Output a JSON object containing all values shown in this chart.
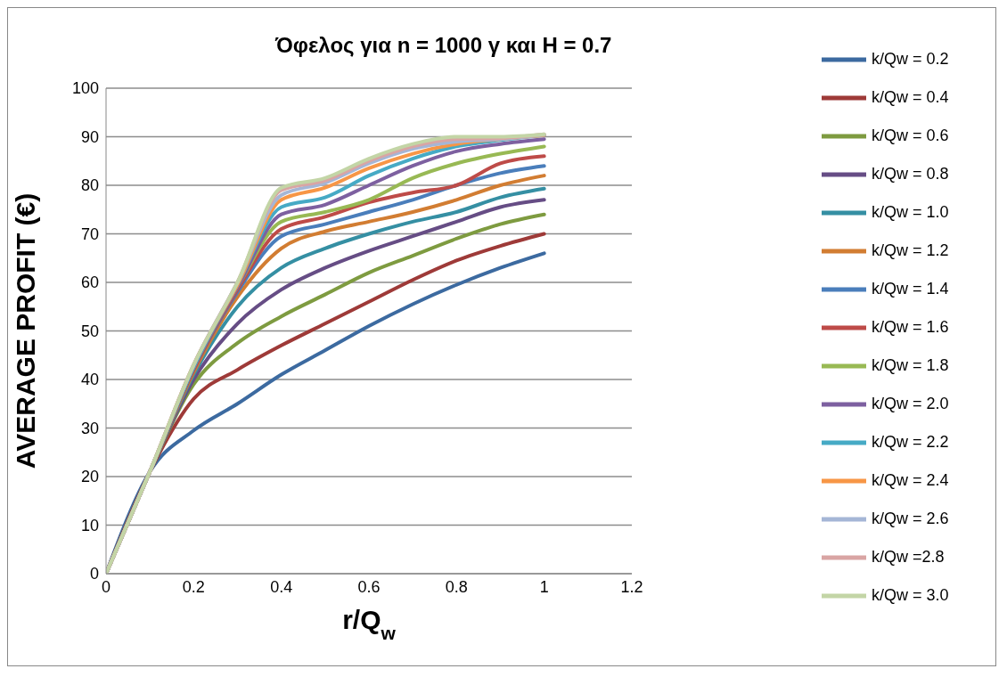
{
  "chart_data": {
    "type": "line",
    "title": "Όφελος για n = 1000 γ και H = 0.7",
    "xlabel": "r/Q$_{w}$",
    "ylabel": "AVERAGE PROFIT (€)",
    "x": [
      0,
      0.1,
      0.2,
      0.3,
      0.4,
      0.5,
      0.6,
      0.7,
      0.8,
      0.9,
      1
    ],
    "series": [
      {
        "name": "k/Qw = 0.2",
        "color": "#3c6aa0",
        "values": [
          0,
          21,
          29.5,
          35,
          41,
          46,
          51,
          55.5,
          59.5,
          63,
          66
        ]
      },
      {
        "name": "k/Qw = 0.4",
        "color": "#9e3a38",
        "values": [
          0,
          21,
          36,
          42,
          47,
          51.5,
          56,
          60.5,
          64.5,
          67.5,
          70
        ]
      },
      {
        "name": "k/Qw = 0.6",
        "color": "#7e9b40",
        "values": [
          0,
          21,
          39,
          47.5,
          53,
          57.5,
          62,
          65.5,
          69,
          72,
          74
        ]
      },
      {
        "name": "k/Qw = 0.8",
        "color": "#664d85",
        "values": [
          0,
          21,
          40,
          51.5,
          58.5,
          63,
          66.5,
          69.5,
          72.5,
          75.5,
          77
        ]
      },
      {
        "name": "k/Qw = 1.0",
        "color": "#358fa3",
        "values": [
          0,
          21,
          41,
          55,
          63,
          67,
          70,
          72.5,
          74.5,
          77.5,
          79.3
        ]
      },
      {
        "name": "k/Qw = 1.2",
        "color": "#d27d32",
        "values": [
          0,
          21,
          41.5,
          57,
          67,
          70.5,
          72.5,
          74.5,
          77,
          80,
          82
        ]
      },
      {
        "name": "k/Qw = 1.4",
        "color": "#4a7ebb",
        "values": [
          0,
          21,
          42,
          58,
          69.5,
          72,
          74.5,
          77,
          80,
          82.5,
          84
        ]
      },
      {
        "name": "k/Qw = 1.6",
        "color": "#be4b48",
        "values": [
          0,
          21,
          42,
          58.5,
          71,
          73.5,
          76.5,
          78.5,
          80,
          84.5,
          86
        ]
      },
      {
        "name": "k/Qw = 1.8",
        "color": "#98b954",
        "values": [
          0,
          21,
          42.5,
          59,
          72.5,
          74.5,
          77,
          81.5,
          84.5,
          86.5,
          88
        ]
      },
      {
        "name": "k/Qw = 2.0",
        "color": "#7d60a0",
        "values": [
          0,
          21,
          42.5,
          59,
          74,
          76,
          80,
          84,
          87,
          88.5,
          89.5
        ]
      },
      {
        "name": "k/Qw = 2.2",
        "color": "#46aac5",
        "values": [
          0,
          21,
          42.5,
          59.5,
          75.5,
          77.5,
          82,
          85.5,
          88,
          89.3,
          90.3
        ]
      },
      {
        "name": "k/Qw = 2.4",
        "color": "#f79646",
        "values": [
          0,
          21,
          43,
          59.5,
          77,
          79.5,
          83.5,
          86.5,
          88.5,
          89.5,
          90.3
        ]
      },
      {
        "name": "k/Qw = 2.6",
        "color": "#a5b6d6",
        "values": [
          0,
          21,
          43,
          60,
          78,
          80.5,
          84.5,
          87.5,
          89,
          89.5,
          90.4
        ]
      },
      {
        "name": "k/Qw =2.8",
        "color": "#d9a5a4",
        "values": [
          0,
          21,
          43,
          60,
          79,
          81,
          85,
          88,
          89.5,
          89.7,
          90.5
        ]
      },
      {
        "name": "k/Qw = 3.0",
        "color": "#c3d5a6",
        "values": [
          0,
          21,
          43,
          60,
          79.5,
          81.5,
          85.5,
          88.5,
          90,
          90,
          90.5
        ]
      }
    ],
    "xlim": [
      0,
      1.2
    ],
    "xticks": [
      0,
      0.2,
      0.4,
      0.6,
      0.8,
      1,
      1.2
    ],
    "ylim": [
      0,
      100
    ],
    "yticks": [
      0,
      10,
      20,
      30,
      40,
      50,
      60,
      70,
      80,
      90,
      100
    ],
    "grid": "y",
    "legend": "right",
    "marker": "none",
    "line_style": "solid"
  }
}
